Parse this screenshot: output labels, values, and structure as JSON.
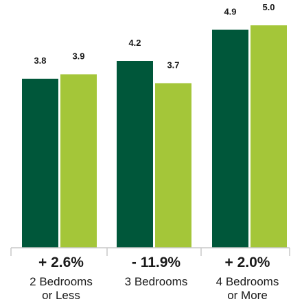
{
  "chart_data": {
    "type": "bar",
    "categories": [
      {
        "lines": [
          "2 Bedrooms",
          "or Less"
        ],
        "change": "+ 2.6%"
      },
      {
        "lines": [
          "3 Bedrooms"
        ],
        "change": "- 11.9%"
      },
      {
        "lines": [
          "4 Bedrooms",
          "or More"
        ],
        "change": "+ 2.0%"
      }
    ],
    "series": [
      {
        "color": "#00573a",
        "values": [
          3.8,
          4.2,
          4.9
        ],
        "value_labels": [
          "3.8",
          "4.2",
          "4.9"
        ]
      },
      {
        "color": "#a4c639",
        "values": [
          3.9,
          3.7,
          5.0
        ],
        "value_labels": [
          "3.9",
          "3.7",
          "5.0"
        ]
      }
    ],
    "ylim": [
      0,
      5.0
    ],
    "grid": false,
    "legend": "none"
  }
}
